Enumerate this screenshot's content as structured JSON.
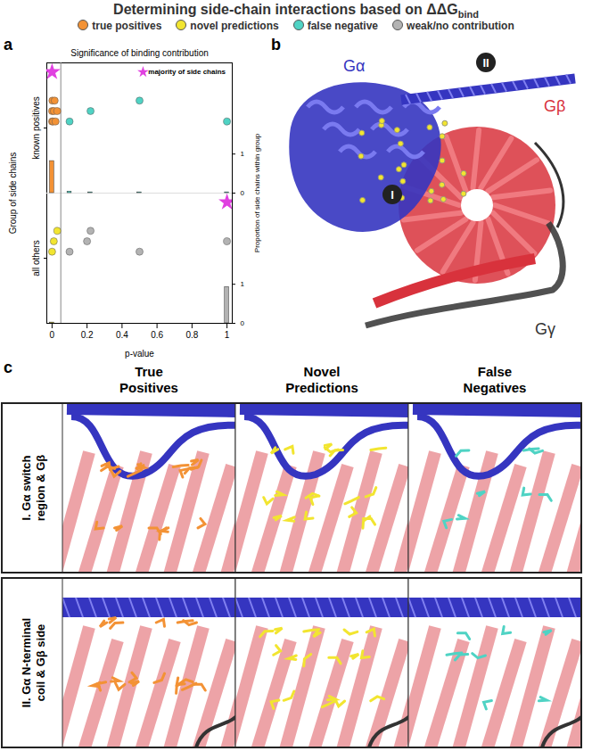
{
  "header": {
    "title": "Determining side-chain interactions based on ΔΔG",
    "title_subscript": "bind"
  },
  "chart_data": {
    "type": "dot_histogram",
    "panel_label": "a",
    "title": "Significance of binding contribution",
    "x_label": "p-value",
    "y_label": "Group of side chains",
    "y2_label": "Proportion of side chains within group",
    "legend": "top",
    "groups": [
      "known positives",
      "all others"
    ],
    "xlim": [
      -0.03,
      1.03
    ],
    "xticks": [
      0,
      0.2,
      0.4,
      0.6,
      0.8,
      1
    ],
    "y2lim": [
      0,
      1
    ],
    "y2ticks": [
      0,
      1
    ],
    "threshold": 0.05,
    "series": [
      {
        "name": "true positives",
        "color": "#f39235",
        "group": "known positives",
        "values": [
          0,
          0,
          0.002,
          0.005,
          0.01,
          0.015,
          0.02,
          0.03
        ]
      },
      {
        "name": "novel predictions",
        "color": "#f2e530",
        "group": "all others",
        "values": [
          0,
          0.01,
          0.03
        ]
      },
      {
        "name": "false negative",
        "color": "#4fd3c4",
        "group": "known positives",
        "values": [
          0.1,
          0.22,
          0.5,
          1
        ]
      },
      {
        "name": "weak/no contribution",
        "color": "#b3b3b3",
        "group": "all others",
        "values": [
          0.1,
          0.2,
          0.22,
          0.5,
          1
        ]
      }
    ],
    "histogram": [
      {
        "group": "known positives",
        "series": "true positives",
        "p": 0,
        "proportion": 0.82
      },
      {
        "group": "known positives",
        "series": "false negative",
        "p": 0.1,
        "proportion": 0.04
      },
      {
        "group": "known positives",
        "series": "false negative",
        "p": 0.22,
        "proportion": 0.02
      },
      {
        "group": "known positives",
        "series": "false negative",
        "p": 0.5,
        "proportion": 0.02
      },
      {
        "group": "known positives",
        "series": "false negative",
        "p": 1,
        "proportion": 0.02
      },
      {
        "group": "all others",
        "series": "novel predictions",
        "p": 0,
        "proportion": 0.02
      },
      {
        "group": "all others",
        "series": "weak/no contribution",
        "p": 1,
        "proportion": 0.93
      }
    ],
    "majority_label": "majority of side chains",
    "majority": [
      {
        "group": "known positives",
        "p": 0
      },
      {
        "group": "all others",
        "p": 1
      }
    ],
    "marker": "star"
  },
  "structure": {
    "panel_label": "b",
    "chains": [
      {
        "name": "Gα",
        "color": "#3535c0"
      },
      {
        "name": "Gβ",
        "color": "#d8323c"
      },
      {
        "name": "Gγ",
        "color": "#333333"
      }
    ],
    "sites": [
      "I",
      "II"
    ]
  },
  "closeups": {
    "panel_label": "c",
    "columns": [
      {
        "title": [
          "True",
          "Positives"
        ],
        "color": "#f39235"
      },
      {
        "title": [
          "Novel",
          "Predictions"
        ],
        "color": "#f2e530"
      },
      {
        "title": [
          "False",
          "Negatives"
        ],
        "color": "#4fd3c4"
      }
    ],
    "rows": [
      {
        "label": [
          "I. Gα switch",
          "region & Gβ"
        ]
      },
      {
        "label": [
          "II. Gα N-terminal",
          "coil & Gβ side"
        ]
      }
    ]
  }
}
